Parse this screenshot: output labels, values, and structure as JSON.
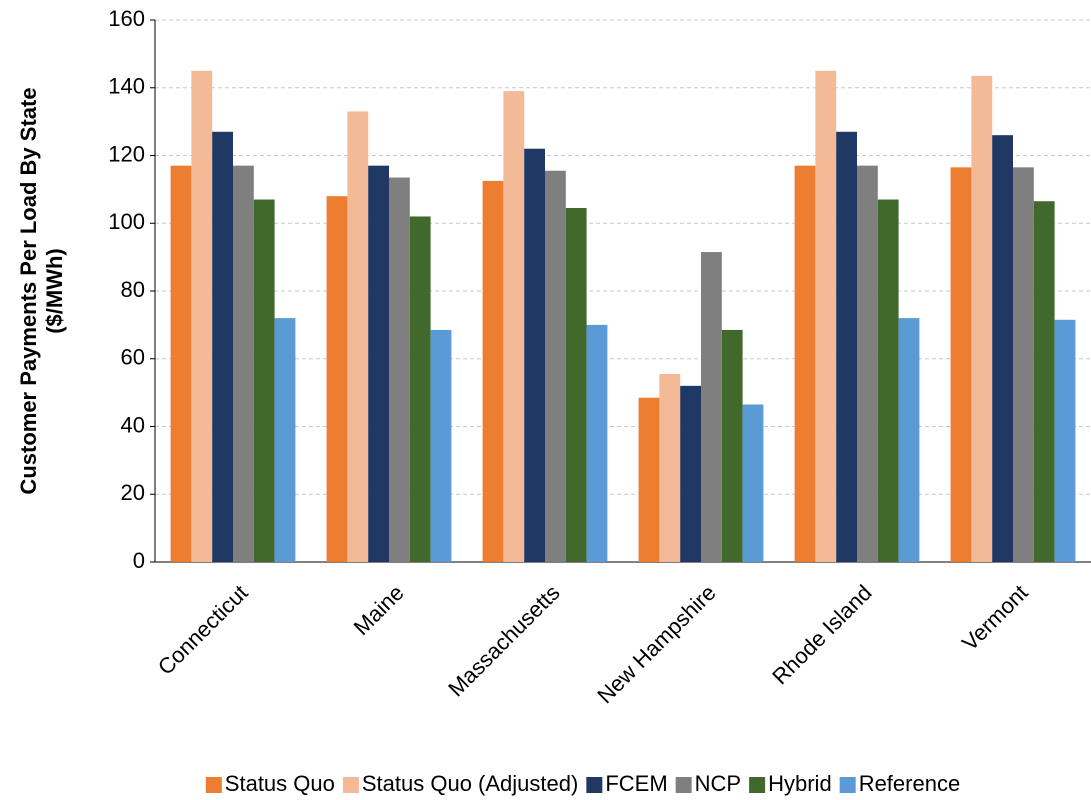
{
  "chart_data": {
    "type": "bar",
    "y_label": [
      "Customer Payments Per Load By State",
      "($/MWh)"
    ],
    "categories": [
      "Connecticut",
      "Maine",
      "Massachusetts",
      "New Hampshire",
      "Rhode Island",
      "Vermont"
    ],
    "series": [
      {
        "name": "Status Quo",
        "color": "#ed7d31",
        "values": [
          117,
          108,
          112.5,
          48.5,
          117,
          116.5
        ]
      },
      {
        "name": "Status Quo (Adjusted)",
        "color": "#f4b997",
        "values": [
          145,
          133,
          139,
          55.5,
          145,
          143.5
        ]
      },
      {
        "name": "FCEM",
        "color": "#203864",
        "values": [
          127,
          117,
          122,
          52,
          127,
          126
        ]
      },
      {
        "name": "NCP",
        "color": "#7f7f7f",
        "values": [
          117,
          113.5,
          115.5,
          91.5,
          117,
          116.5
        ]
      },
      {
        "name": "Hybrid",
        "color": "#41692c",
        "values": [
          107,
          102,
          104.5,
          68.5,
          107,
          106.5
        ]
      },
      {
        "name": "Reference",
        "color": "#5b9bd5",
        "values": [
          72,
          68.5,
          70,
          46.5,
          72,
          71.5
        ]
      }
    ],
    "ylim": [
      0,
      160
    ],
    "yticks": [
      0,
      20,
      40,
      60,
      80,
      100,
      120,
      140,
      160
    ],
    "grid": true,
    "legend": "bottom"
  }
}
